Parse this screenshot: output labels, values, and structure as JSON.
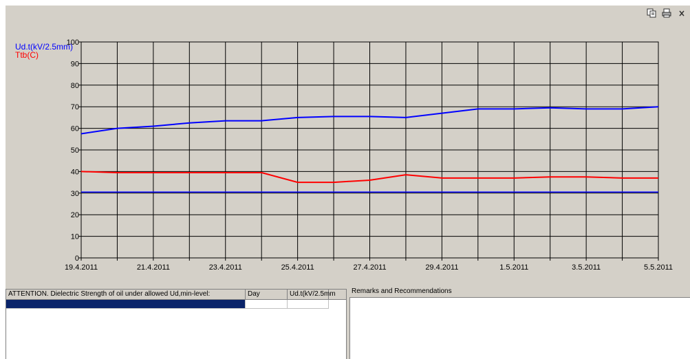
{
  "toolbar": {
    "icons": [
      "copy-icon",
      "print-icon",
      "close-icon"
    ]
  },
  "chart_data": {
    "type": "line",
    "legend": [
      "Ud.t(kV/2.5mm)",
      "Ttb(C)"
    ],
    "colors": {
      "ud": "#0000ff",
      "temp": "#ff0000",
      "limit": "#0000ff",
      "grid": "#000000",
      "background": "#d4d0c8"
    },
    "x_labels": [
      "19.4.2011",
      "21.4.2011",
      "23.4.2011",
      "25.4.2011",
      "27.4.2011",
      "29.4.2011",
      "1.5.2011",
      "3.5.2011",
      "5.5.2011"
    ],
    "x_domain_days": [
      0,
      16
    ],
    "ylim": [
      0,
      100
    ],
    "y_ticks": [
      0,
      10,
      20,
      30,
      40,
      50,
      60,
      70,
      80,
      90,
      100
    ],
    "grid": true,
    "legend_position": "top-left",
    "series": [
      {
        "name": "Ud.t(kV/2.5mm)",
        "color": "#0000ff",
        "x_days": [
          0,
          1,
          2,
          3,
          4,
          5,
          6,
          7,
          8,
          9,
          10,
          11,
          12,
          13,
          14,
          15,
          16
        ],
        "values": [
          57.5,
          60,
          61,
          62.5,
          63.5,
          63.5,
          65,
          65.5,
          65.5,
          65,
          67,
          69,
          69,
          69.5,
          69,
          69,
          70
        ]
      },
      {
        "name": "Ttb(C)",
        "color": "#ff0000",
        "x_days": [
          0,
          1,
          2,
          3,
          4,
          5,
          6,
          7,
          8,
          9,
          10,
          11,
          12,
          13,
          14,
          15,
          16
        ],
        "values": [
          40,
          39.5,
          39.5,
          39.5,
          39.5,
          39.5,
          35,
          35,
          36,
          38.5,
          37,
          37,
          37,
          37.5,
          37.5,
          37,
          37
        ]
      },
      {
        "name": "Ud,min-level",
        "color": "#0000ff",
        "x_days": [
          0,
          16
        ],
        "values": [
          30.5,
          30.5
        ]
      }
    ]
  },
  "alert_table": {
    "headers": [
      "ATTENTION. Dielectric Strength of oil under allowed Ud,min-level:",
      "Day",
      "Ud.t(kV/2.5mm"
    ],
    "selected_row": [
      "",
      "",
      ""
    ]
  },
  "remarks": {
    "title": "Remarks and Recommendations",
    "text": ""
  }
}
